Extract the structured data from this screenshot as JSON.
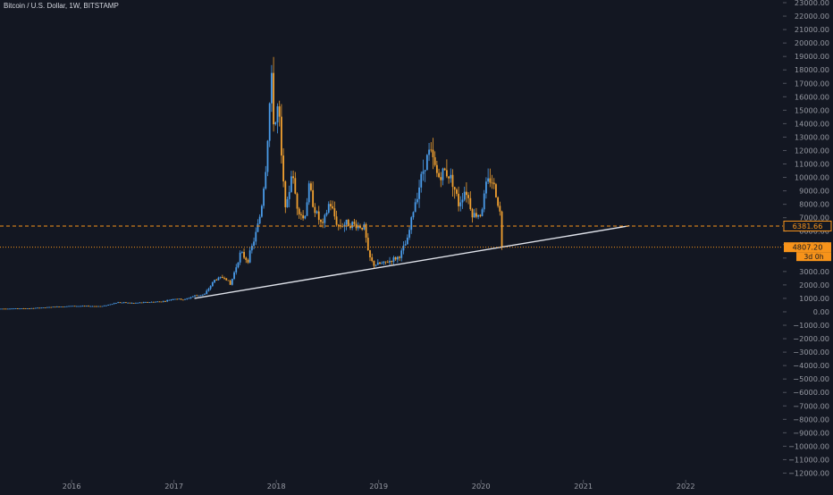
{
  "header": {
    "title": "Bitcoin / U.S. Dollar, 1W, BITSTAMP"
  },
  "colors": {
    "background": "#131722",
    "up": "#4a9be8",
    "down": "#f0a030",
    "price_line": "#f7931a",
    "trendline": "#e0e3eb",
    "axis_text": "#9598a1"
  },
  "price_tags": [
    {
      "key": "current",
      "label": "6381.66",
      "value": 6381.66,
      "style": "dashed"
    },
    {
      "key": "level",
      "label": "4807.20",
      "value": 4807.2,
      "style": "dotted"
    },
    {
      "key": "countdown",
      "label": "3d 0h"
    }
  ],
  "chart_data": {
    "type": "candlestick",
    "title": "Bitcoin / U.S. Dollar, 1W, BITSTAMP",
    "ylim": [
      -12500,
      23200
    ],
    "yticks": [
      23000,
      22000,
      21000,
      20000,
      19000,
      18000,
      17000,
      16000,
      15000,
      14000,
      13000,
      12000,
      11000,
      10000,
      9000,
      8000,
      7000,
      6000,
      5000,
      4000,
      3000,
      2000,
      1000,
      0,
      -1000,
      -2000,
      -3000,
      -4000,
      -5000,
      -6000,
      -7000,
      -8000,
      -9000,
      -10000,
      -11000,
      -12000
    ],
    "ytick_labels": [
      "23000.00",
      "22000.00",
      "21000.00",
      "20000.00",
      "19000.00",
      "18000.00",
      "17000.00",
      "16000.00",
      "15000.00",
      "14000.00",
      "13000.00",
      "12000.00",
      "11000.00",
      "10000.00",
      "9000.00",
      "8000.00",
      "7000.00",
      "6000.00",
      "5000.00",
      "4000.00",
      "3000.00",
      "2000.00",
      "1000.00",
      "0.00",
      "−1000.00",
      "−2000.00",
      "−3000.00",
      "−4000.00",
      "−5000.00",
      "−6000.00",
      "−7000.00",
      "−8000.00",
      "−9000.00",
      "−10000.00",
      "−11000.00",
      "−12000.00"
    ],
    "xlim": [
      2015.3,
      2022.95
    ],
    "xticks": [
      2016,
      2017,
      2018,
      2019,
      2020,
      2021,
      2022
    ],
    "xtick_labels": [
      "2016",
      "2017",
      "2018",
      "2019",
      "2020",
      "2021",
      "2022"
    ],
    "price_path": [
      [
        2015.3,
        230
      ],
      [
        2015.6,
        260
      ],
      [
        2015.85,
        380
      ],
      [
        2016.0,
        430
      ],
      [
        2016.3,
        420
      ],
      [
        2016.45,
        700
      ],
      [
        2016.6,
        650
      ],
      [
        2016.9,
        780
      ],
      [
        2017.0,
        980
      ],
      [
        2017.1,
        900
      ],
      [
        2017.2,
        1200
      ],
      [
        2017.3,
        1300
      ],
      [
        2017.4,
        2400
      ],
      [
        2017.5,
        2600
      ],
      [
        2017.55,
        2000
      ],
      [
        2017.65,
        4400
      ],
      [
        2017.72,
        3800
      ],
      [
        2017.8,
        5800
      ],
      [
        2017.85,
        7500
      ],
      [
        2017.9,
        11000
      ],
      [
        2017.95,
        17500
      ],
      [
        2017.98,
        13500
      ],
      [
        2018.02,
        15500
      ],
      [
        2018.06,
        10000
      ],
      [
        2018.1,
        7500
      ],
      [
        2018.15,
        10500
      ],
      [
        2018.2,
        8000
      ],
      [
        2018.27,
        6800
      ],
      [
        2018.32,
        9300
      ],
      [
        2018.38,
        7500
      ],
      [
        2018.45,
        6300
      ],
      [
        2018.52,
        8200
      ],
      [
        2018.6,
        6400
      ],
      [
        2018.7,
        6600
      ],
      [
        2018.8,
        6400
      ],
      [
        2018.86,
        6300
      ],
      [
        2018.9,
        4200
      ],
      [
        2018.95,
        3500
      ],
      [
        2019.05,
        3600
      ],
      [
        2019.2,
        4100
      ],
      [
        2019.28,
        5300
      ],
      [
        2019.35,
        8000
      ],
      [
        2019.45,
        11000
      ],
      [
        2019.5,
        12000
      ],
      [
        2019.58,
        10000
      ],
      [
        2019.65,
        10500
      ],
      [
        2019.72,
        9800
      ],
      [
        2019.78,
        8000
      ],
      [
        2019.85,
        9200
      ],
      [
        2019.92,
        7200
      ],
      [
        2020.0,
        7300
      ],
      [
        2020.05,
        9400
      ],
      [
        2020.1,
        10000
      ],
      [
        2020.14,
        8900
      ],
      [
        2020.18,
        7800
      ],
      [
        2020.21,
        4807.2
      ]
    ],
    "trendline": {
      "start": [
        2017.2,
        1000
      ],
      "end": [
        2021.45,
        6400
      ]
    },
    "annotations": []
  }
}
